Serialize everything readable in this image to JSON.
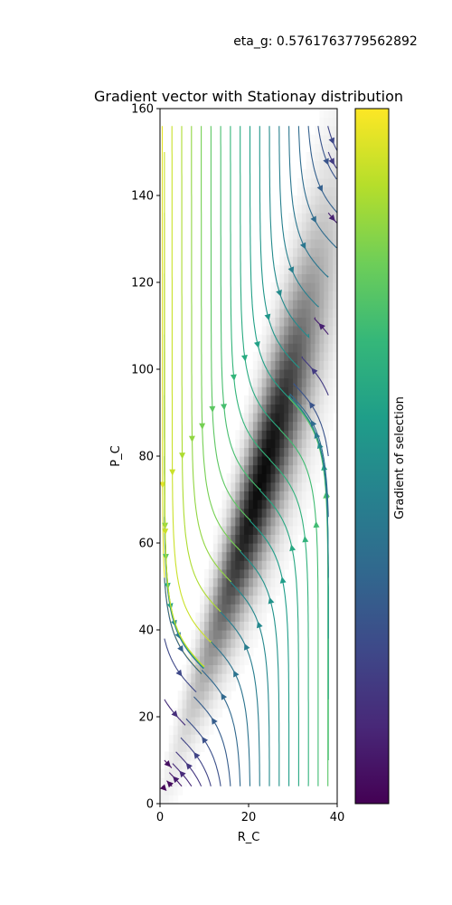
{
  "suptitle": "eta_g: 0.5761763779562892",
  "chart_data": {
    "type": "streamplot",
    "title": "Gradient vector with Stationay distribution",
    "xlabel": "R_C",
    "ylabel": "P_C",
    "xlim": [
      0,
      40
    ],
    "ylim": [
      0,
      160
    ],
    "xticks": [
      0,
      20,
      40
    ],
    "yticks": [
      0,
      20,
      40,
      60,
      80,
      100,
      120,
      140,
      160
    ],
    "background": "stationary distribution (grayscale density, peak along P_C ≈ 3.2·R_C, densest near R_C≈23, P_C≈80)",
    "colorbar": {
      "label": "Gradient of selection",
      "colormap": "viridis"
    },
    "grid": false
  },
  "colors": {
    "viridis": [
      "#440154",
      "#482878",
      "#3e4989",
      "#31688e",
      "#26828e",
      "#1f9e89",
      "#35b779",
      "#6ece58",
      "#b5de2b",
      "#fde725"
    ]
  }
}
